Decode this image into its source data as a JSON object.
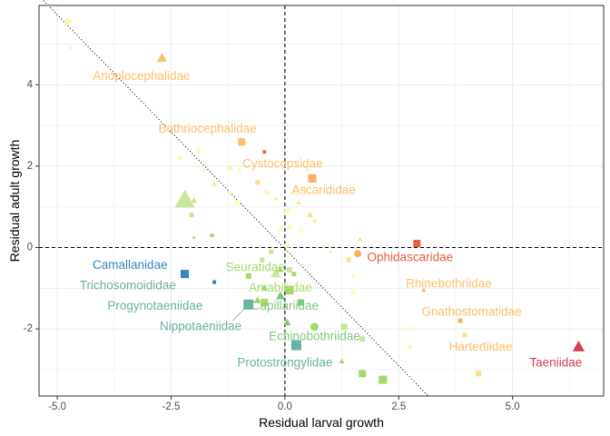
{
  "chart_data": {
    "type": "scatter",
    "xlabel": "Residual larval growth",
    "ylabel": "Residual adult growth",
    "xlim": [
      -5.4,
      7.0
    ],
    "ylim": [
      -3.65,
      5.95
    ],
    "x_ticks": [
      -5,
      -2.5,
      0,
      2.5,
      5
    ],
    "x_tick_labels": [
      "-5.0",
      "-2.5",
      "0.0",
      "2.5",
      "5.0"
    ],
    "y_ticks": [
      -2,
      0,
      2,
      4
    ],
    "y_tick_labels": [
      "-2",
      "0",
      "2",
      "4"
    ],
    "grid": true,
    "reference_lines": [
      {
        "type": "vertical",
        "x": 0,
        "style": "dashed"
      },
      {
        "type": "horizontal",
        "y": 0,
        "style": "dashed"
      },
      {
        "type": "diagonal",
        "slope": -1.15,
        "intercept": -0.03,
        "style": "dotted"
      }
    ],
    "points": [
      {
        "x": -4.75,
        "y": 5.55,
        "shape": "square",
        "size": 6,
        "color": "#fdf6a6"
      },
      {
        "x": -4.7,
        "y": 4.9,
        "shape": "square",
        "size": 4,
        "color": "#fef9bf"
      },
      {
        "x": -2.7,
        "y": 4.65,
        "shape": "triangle",
        "size": 11,
        "color": "#fdbf6a"
      },
      {
        "x": -1.9,
        "y": 2.4,
        "shape": "square",
        "size": 5,
        "color": "#fef9bf"
      },
      {
        "x": -1.8,
        "y": 1.9,
        "shape": "square",
        "size": 4,
        "color": "#fef9bf"
      },
      {
        "x": -2.3,
        "y": 2.2,
        "shape": "square",
        "size": 4,
        "color": "#fdf6a6"
      },
      {
        "x": -1.2,
        "y": 1.95,
        "shape": "triangle",
        "size": 7,
        "color": "#fdf6a6"
      },
      {
        "x": -1.0,
        "y": 1.9,
        "shape": "triangle",
        "size": 6,
        "color": "#fef9bf"
      },
      {
        "x": -1.55,
        "y": 1.55,
        "shape": "triangle",
        "size": 7,
        "color": "#e8f5a0"
      },
      {
        "x": -0.6,
        "y": 1.6,
        "shape": "square",
        "size": 5,
        "color": "#fee08b"
      },
      {
        "x": -0.4,
        "y": 1.35,
        "shape": "square",
        "size": 5,
        "color": "#fef9bf"
      },
      {
        "x": -1.2,
        "y": 1.35,
        "shape": "square",
        "size": 4,
        "color": "#fef9bf"
      },
      {
        "x": -1.05,
        "y": 1.1,
        "shape": "square",
        "size": 6,
        "color": "#fef9bf"
      },
      {
        "x": -0.95,
        "y": 2.55,
        "shape": "triangle",
        "size": 6,
        "color": "#fdbf6a"
      },
      {
        "x": -0.45,
        "y": 2.35,
        "shape": "square",
        "size": 4,
        "color": "#f46d43"
      },
      {
        "x": -0.95,
        "y": 2.6,
        "shape": "square",
        "size": 8,
        "color": "#fdbf6a"
      },
      {
        "x": -2.2,
        "y": 1.15,
        "shape": "triangle",
        "size": 22,
        "color": "#c9e69a"
      },
      {
        "x": -2.0,
        "y": 1.15,
        "shape": "triangle",
        "size": 7,
        "color": "#c9e69a"
      },
      {
        "x": -2.05,
        "y": 0.8,
        "shape": "square",
        "size": 5,
        "color": "#c9e69a"
      },
      {
        "x": -1.6,
        "y": 0.3,
        "shape": "square",
        "size": 4,
        "color": "#a6d96a"
      },
      {
        "x": -2.0,
        "y": 0.25,
        "shape": "triangle",
        "size": 4,
        "color": "#a6d96a"
      },
      {
        "x": -0.2,
        "y": 1.2,
        "shape": "triangle",
        "size": 5,
        "color": "#e8f5a0"
      },
      {
        "x": -0.1,
        "y": 0.45,
        "shape": "square",
        "size": 5,
        "color": "#fef9bf"
      },
      {
        "x": 0.05,
        "y": 0.9,
        "shape": "square",
        "size": 6,
        "color": "#fef9bf"
      },
      {
        "x": 0.1,
        "y": 0.5,
        "shape": "square",
        "size": 5,
        "color": "#fef9bf"
      },
      {
        "x": -0.3,
        "y": -0.1,
        "shape": "square",
        "size": 5,
        "color": "#c9e69a"
      },
      {
        "x": 0.05,
        "y": 0.05,
        "shape": "square",
        "size": 5,
        "color": "#fdf6a6"
      },
      {
        "x": 0.35,
        "y": 0.45,
        "shape": "triangle",
        "size": 6,
        "color": "#fef9bf"
      },
      {
        "x": 0.55,
        "y": 0.8,
        "shape": "triangle",
        "size": 7,
        "color": "#fee08b"
      },
      {
        "x": 0.65,
        "y": 0.65,
        "shape": "circle",
        "size": 5,
        "color": "#fdf6a6"
      },
      {
        "x": 0.3,
        "y": 1.1,
        "shape": "triangle",
        "size": 5,
        "color": "#fee08b"
      },
      {
        "x": 0.45,
        "y": 1.45,
        "shape": "square",
        "size": 4,
        "color": "#fdf6a6"
      },
      {
        "x": 0.5,
        "y": 1.9,
        "shape": "triangle",
        "size": 5,
        "color": "#fdf6a6"
      },
      {
        "x": 0.25,
        "y": 1.35,
        "shape": "square",
        "size": 5,
        "color": "#fef9bf"
      },
      {
        "x": 0.25,
        "y": 1.5,
        "shape": "square",
        "size": 4,
        "color": "#fef9bf"
      },
      {
        "x": 0.6,
        "y": 1.7,
        "shape": "square",
        "size": 9,
        "color": "#fdae61"
      },
      {
        "x": 1.6,
        "y": -0.15,
        "shape": "circle",
        "size": 8,
        "color": "#fdae61"
      },
      {
        "x": 2.9,
        "y": 0.1,
        "shape": "square",
        "size": 8,
        "color": "#e8603c"
      },
      {
        "x": 1.65,
        "y": 0.2,
        "shape": "triangle",
        "size": 5,
        "color": "#fee08b"
      },
      {
        "x": 1.4,
        "y": -0.3,
        "shape": "square",
        "size": 5,
        "color": "#fee08b"
      },
      {
        "x": 1.0,
        "y": -0.1,
        "shape": "triangle",
        "size": 4,
        "color": "#fee08b"
      },
      {
        "x": 1.5,
        "y": -0.7,
        "shape": "square",
        "size": 4,
        "color": "#fef9bf"
      },
      {
        "x": 1.5,
        "y": -1.1,
        "shape": "square",
        "size": 5,
        "color": "#fef9bf"
      },
      {
        "x": 3.05,
        "y": -1.05,
        "shape": "triangle",
        "size": 5,
        "color": "#fdae61"
      },
      {
        "x": 3.85,
        "y": -1.8,
        "shape": "square",
        "size": 5,
        "color": "#fdae61"
      },
      {
        "x": 3.95,
        "y": -2.15,
        "shape": "square",
        "size": 5,
        "color": "#fee08b"
      },
      {
        "x": 2.75,
        "y": -2.0,
        "shape": "square",
        "size": 4,
        "color": "#fef9bf"
      },
      {
        "x": 2.75,
        "y": -2.45,
        "shape": "square",
        "size": 4,
        "color": "#fdf6a6"
      },
      {
        "x": 4.25,
        "y": -3.1,
        "shape": "square",
        "size": 6,
        "color": "#fee08b"
      },
      {
        "x": 6.45,
        "y": -2.45,
        "shape": "triangle",
        "size": 13,
        "color": "#d53e4f"
      },
      {
        "x": -2.2,
        "y": -0.65,
        "shape": "square",
        "size": 9,
        "color": "#3288bd"
      },
      {
        "x": -1.55,
        "y": -0.85,
        "shape": "square",
        "size": 4,
        "color": "#3288bd"
      },
      {
        "x": -0.2,
        "y": -0.65,
        "shape": "triangle",
        "size": 11,
        "color": "#c9e69a"
      },
      {
        "x": -0.1,
        "y": -0.55,
        "shape": "triangle",
        "size": 7,
        "color": "#a6d96a"
      },
      {
        "x": 0.1,
        "y": -0.55,
        "shape": "square",
        "size": 6,
        "color": "#c9e69a"
      },
      {
        "x": 0.2,
        "y": -0.65,
        "shape": "square",
        "size": 5,
        "color": "#a6d96a"
      },
      {
        "x": -0.5,
        "y": -0.3,
        "shape": "square",
        "size": 5,
        "color": "#c9e69a"
      },
      {
        "x": -0.8,
        "y": -0.7,
        "shape": "square",
        "size": 6,
        "color": "#a6d96a"
      },
      {
        "x": -0.6,
        "y": -1.3,
        "shape": "triangle",
        "size": 8,
        "color": "#a6d96a"
      },
      {
        "x": -0.45,
        "y": -1.0,
        "shape": "triangle",
        "size": 7,
        "color": "#a6d96a"
      },
      {
        "x": -0.1,
        "y": -1.2,
        "shape": "triangle",
        "size": 10,
        "color": "#7fc97f"
      },
      {
        "x": -0.45,
        "y": -1.35,
        "shape": "square",
        "size": 8,
        "color": "#a6d96a"
      },
      {
        "x": 0.1,
        "y": -1.05,
        "shape": "square",
        "size": 9,
        "color": "#a6d96a"
      },
      {
        "x": 0.35,
        "y": -1.35,
        "shape": "square",
        "size": 7,
        "color": "#7fc97f"
      },
      {
        "x": -0.8,
        "y": -1.4,
        "shape": "square",
        "size": 11,
        "color": "#66b2a4"
      },
      {
        "x": 0.05,
        "y": -1.85,
        "shape": "triangle",
        "size": 8,
        "color": "#7fc97f"
      },
      {
        "x": 0.65,
        "y": -1.95,
        "shape": "circle",
        "size": 9,
        "color": "#a6d96a"
      },
      {
        "x": 1.3,
        "y": -1.95,
        "shape": "square",
        "size": 7,
        "color": "#c9e69a"
      },
      {
        "x": 1.7,
        "y": -2.25,
        "shape": "square",
        "size": 6,
        "color": "#c9e69a"
      },
      {
        "x": 0.25,
        "y": -2.4,
        "shape": "square",
        "size": 11,
        "color": "#66b2a4"
      },
      {
        "x": 1.25,
        "y": -2.8,
        "shape": "triangle",
        "size": 6,
        "color": "#a6d96a"
      },
      {
        "x": 1.7,
        "y": -3.1,
        "shape": "square",
        "size": 8,
        "color": "#a6d96a"
      },
      {
        "x": 2.15,
        "y": -3.25,
        "shape": "square",
        "size": 9,
        "color": "#a6d96a"
      }
    ],
    "annotations": [
      {
        "text": "Anoplocephalidae",
        "x": -3.15,
        "y": 4.2,
        "color": "#fdbf6a"
      },
      {
        "text": "Bothriocephalidae",
        "x": -1.7,
        "y": 2.9,
        "color": "#fdbf6a"
      },
      {
        "text": "Cystocopsidae",
        "x": -0.05,
        "y": 2.05,
        "color": "#fdbf6a"
      },
      {
        "text": "Ascarididae",
        "x": 0.85,
        "y": 1.4,
        "color": "#fdbf6a"
      },
      {
        "text": "Ophidascaridae",
        "x": 2.75,
        "y": -0.25,
        "color": "#e8603c"
      },
      {
        "text": "Rhinebothriidae",
        "x": 3.6,
        "y": -0.9,
        "color": "#fdbf6a"
      },
      {
        "text": "Gnathostomatidae",
        "x": 4.1,
        "y": -1.6,
        "color": "#fdbf6a"
      },
      {
        "text": "Hartertiidae",
        "x": 4.3,
        "y": -2.45,
        "color": "#fdbf6a"
      },
      {
        "text": "Taeniidae",
        "x": 5.95,
        "y": -2.85,
        "color": "#d53e4f"
      },
      {
        "text": "Camallanidae",
        "x": -3.4,
        "y": -0.45,
        "color": "#3288bd"
      },
      {
        "text": "Trichosomoididae",
        "x": -3.45,
        "y": -0.95,
        "color": "#66b2a4"
      },
      {
        "text": "Seuratidae",
        "x": -0.65,
        "y": -0.5,
        "color": "#a6d96a"
      },
      {
        "text": "Amabiliidae",
        "x": -0.1,
        "y": -1.0,
        "color": "#a6d96a"
      },
      {
        "text": "Progynotaeniidae",
        "x": -2.85,
        "y": -1.45,
        "color": "#66b2a4"
      },
      {
        "text": "Capillariidae",
        "x": 0.0,
        "y": -1.45,
        "color": "#7fc97f"
      },
      {
        "text": "Nippotaeniidae",
        "x": -1.85,
        "y": -1.95,
        "color": "#66b2a4"
      },
      {
        "text": "Echinobothriidae",
        "x": 0.65,
        "y": -2.2,
        "color": "#7fc97f"
      },
      {
        "text": "Protostrongylidae",
        "x": 0.0,
        "y": -2.85,
        "color": "#66b2a4"
      }
    ],
    "callout": {
      "from_label": "Nippotaeniidae",
      "to": {
        "x": -0.8,
        "y": -1.4
      },
      "label_anchor": {
        "x": -1.15,
        "y": -1.8
      }
    }
  }
}
